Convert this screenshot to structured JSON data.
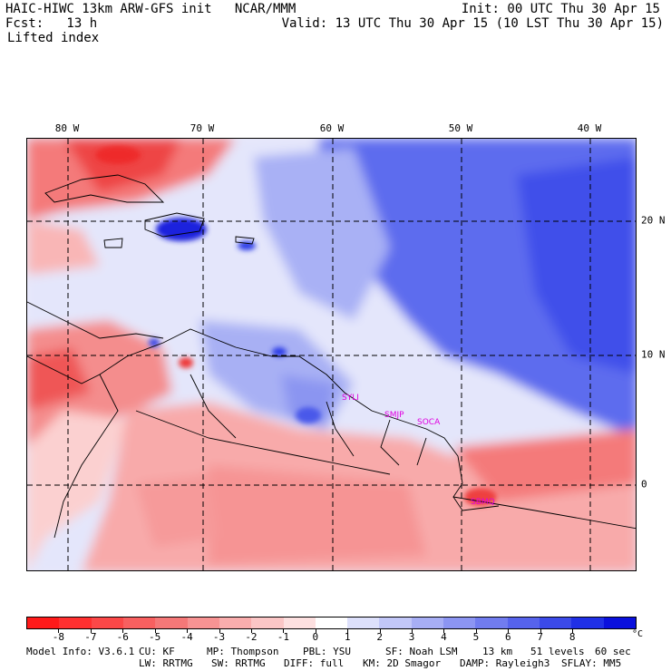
{
  "header": {
    "line1_left": "HAIC-HIWC 13km ARW-GFS init   NCAR/MMM",
    "line1_right": "Init: 00 UTC Thu 30 Apr 15",
    "line2_left": "Fcst:   13 h",
    "line2_right": "Valid: 13 UTC Thu 30 Apr 15 (10 LST Thu 30 Apr 15)",
    "field": "Lifted index"
  },
  "map": {
    "longitude_labels": [
      "80 W",
      "70 W",
      "60 W",
      "50 W",
      "40 W"
    ],
    "latitude_labels": [
      "20 N",
      "10 N",
      "0"
    ],
    "stations": [
      "SYLI",
      "SMJP",
      "SOCA",
      "SBMQ"
    ],
    "colors": {
      "negative_strong": "#ee3b3b",
      "negative_mid": "#f59191",
      "negative_light": "#fbd3d3",
      "neutral": "#ffffff",
      "positive_light": "#cdd2fa",
      "positive_mid": "#7f8cf0",
      "positive_strong": "#2a3ae8",
      "positive_max": "#1515e0"
    }
  },
  "colorbar": {
    "labels": [
      "-8",
      "-7",
      "-6",
      "-5",
      "-4",
      "-3",
      "-2",
      "-1",
      "0",
      "1",
      "2",
      "3",
      "4",
      "5",
      "6",
      "7",
      "8"
    ],
    "unit": "°C",
    "colors": [
      "#ff1a1a",
      "#ff3030",
      "#fb4848",
      "#f86060",
      "#f57878",
      "#f79393",
      "#f9adad",
      "#fbc6c6",
      "#fde0e0",
      "#ffffff",
      "#dde0fb",
      "#c2c7f8",
      "#a7aef5",
      "#8c95f2",
      "#717cef",
      "#5663ec",
      "#3b4ae9",
      "#2030e6",
      "#0a10dd"
    ]
  },
  "footer": {
    "line1": [
      "Model Info: V3.6.1",
      "CU: KF",
      "MP: Thompson",
      "PBL: YSU",
      "SF: Noah LSM",
      "13 km",
      "51 levels",
      "60 sec"
    ],
    "line2": [
      "LW: RRTMG",
      "SW: RRTMG",
      "DIFF: full",
      "KM: 2D Smagor",
      "DAMP: Rayleigh3",
      "SFLAY: MM5"
    ]
  }
}
